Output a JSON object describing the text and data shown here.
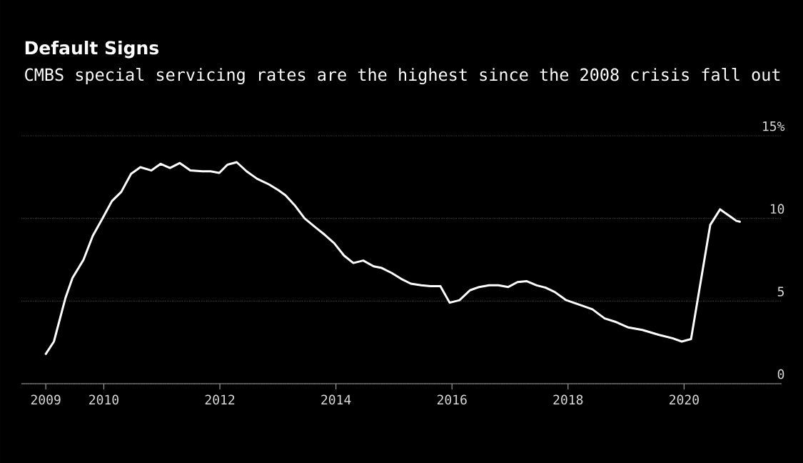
{
  "chart_data": {
    "type": "line",
    "title": "Default Signs",
    "subtitle": "CMBS special servicing rates are the highest since the 2008 crisis fall out",
    "x": [
      2009.0,
      2009.14,
      2009.34,
      2009.46,
      2009.65,
      2009.81,
      2009.97,
      2010.14,
      2010.3,
      2010.47,
      2010.63,
      2010.82,
      2010.98,
      2011.14,
      2011.31,
      2011.49,
      2011.7,
      2011.84,
      2011.99,
      2012.13,
      2012.29,
      2012.46,
      2012.64,
      2012.85,
      2013.01,
      2013.13,
      2013.3,
      2013.46,
      2013.65,
      2013.81,
      2013.97,
      2014.14,
      2014.3,
      2014.47,
      2014.65,
      2014.79,
      2014.96,
      2015.12,
      2015.29,
      2015.47,
      2015.63,
      2015.8,
      2015.96,
      2016.13,
      2016.31,
      2016.47,
      2016.64,
      2016.8,
      2016.97,
      2017.13,
      2017.29,
      2017.46,
      2017.62,
      2017.77,
      2017.97,
      2018.22,
      2018.42,
      2018.63,
      2018.81,
      2019.04,
      2019.28,
      2019.57,
      2019.8,
      2019.96,
      2020.12,
      2020.45,
      2020.62,
      2020.8,
      2020.9,
      2020.96
    ],
    "values": [
      1.8,
      2.55,
      5.2,
      6.4,
      7.5,
      8.95,
      9.95,
      11.05,
      11.6,
      12.7,
      13.1,
      12.9,
      13.3,
      13.05,
      13.35,
      12.9,
      12.85,
      12.85,
      12.75,
      13.25,
      13.4,
      12.85,
      12.4,
      12.05,
      11.7,
      11.4,
      10.75,
      10.0,
      9.45,
      9.0,
      8.5,
      7.75,
      7.3,
      7.45,
      7.1,
      7.0,
      6.7,
      6.35,
      6.05,
      5.95,
      5.9,
      5.9,
      4.9,
      5.05,
      5.65,
      5.85,
      5.95,
      5.95,
      5.85,
      6.15,
      6.2,
      5.95,
      5.8,
      5.55,
      5.05,
      4.75,
      4.5,
      3.95,
      3.75,
      3.4,
      3.25,
      2.95,
      2.75,
      2.55,
      2.7,
      9.6,
      10.55,
      10.1,
      9.85,
      9.8
    ],
    "color": "#ffffff",
    "line_style": "solid",
    "xlim": [
      2008.58,
      2021.68
    ],
    "xticks": [
      2009,
      2010,
      2012,
      2014,
      2016,
      2018,
      2020
    ],
    "ylim": [
      0,
      15
    ],
    "yticks": [
      0,
      5,
      10,
      {
        "value": 15,
        "label": "15%"
      }
    ],
    "grid": "y"
  }
}
